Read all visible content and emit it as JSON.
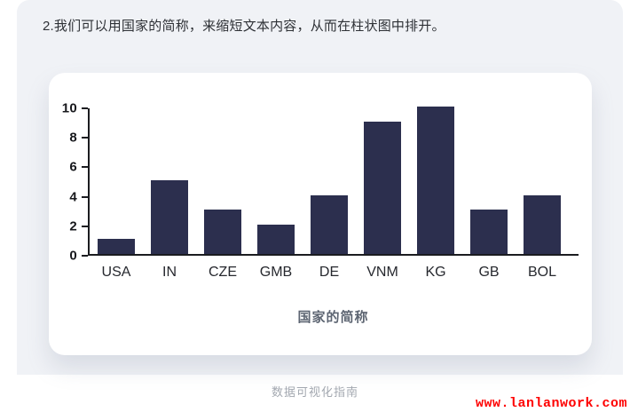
{
  "page": {
    "instruction": "2.我们可以用国家的简称，来缩短文本内容，从而在柱状图中排开。",
    "caption": "数据可视化指南",
    "watermark": "www.lanlanwork.com"
  },
  "chart_data": {
    "type": "bar",
    "categories": [
      "USA",
      "IN",
      "CZE",
      "GMB",
      "DE",
      "VNM",
      "KG",
      "GB",
      "BOL"
    ],
    "values": [
      1,
      5,
      3,
      2,
      4,
      9,
      10,
      3,
      4
    ],
    "title": "",
    "xlabel": "国家的简称",
    "ylabel": "",
    "ylim": [
      0,
      10
    ],
    "yticks": [
      0,
      2,
      4,
      6,
      8,
      10
    ],
    "grid": false,
    "legend": null,
    "bar_color": "#2c2f4e"
  },
  "colors": {
    "panel_background": "#f0f2f6",
    "card_background": "#ffffff",
    "bar": "#2c2f4e",
    "axis": "#1b1c20",
    "axis_title": "#5d6572",
    "caption": "#a3a8b0",
    "watermark": "#fe0000"
  }
}
